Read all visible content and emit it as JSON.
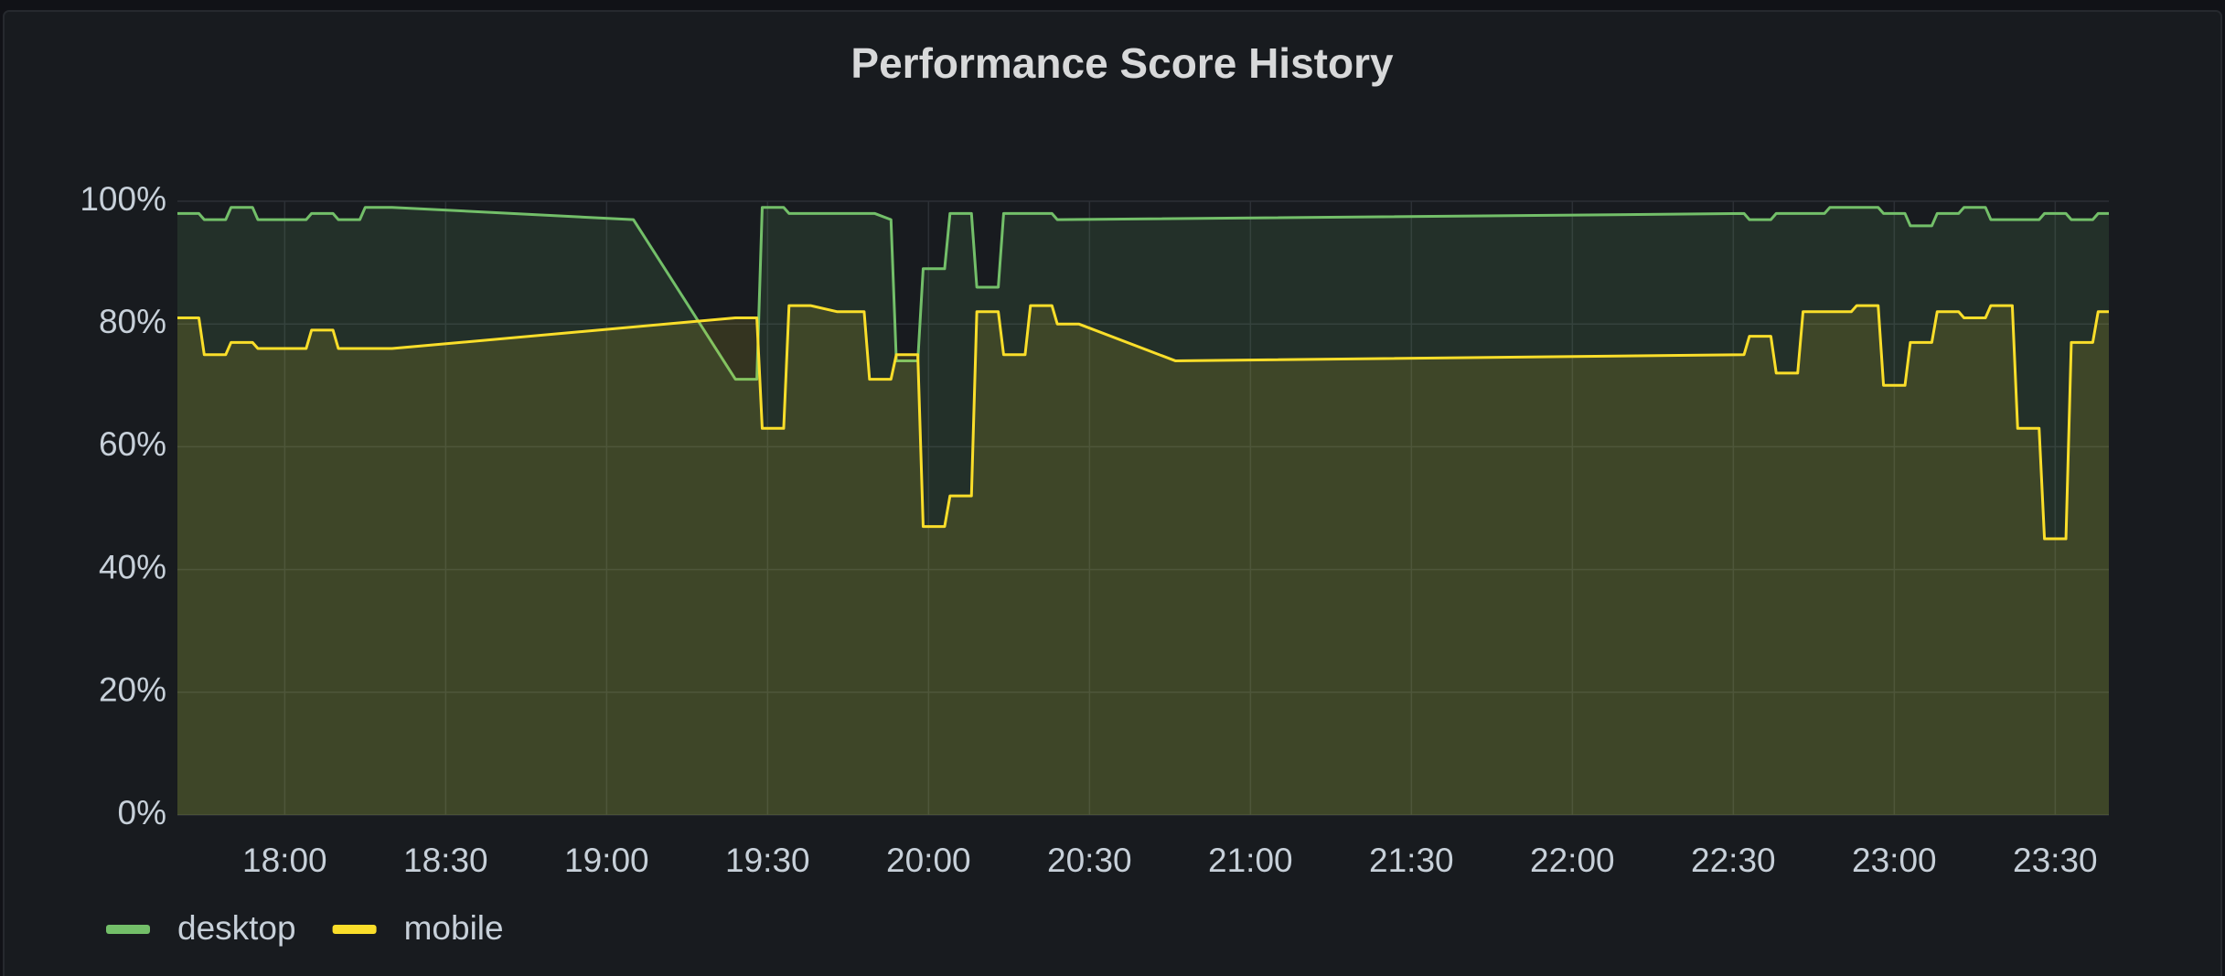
{
  "chart_data": {
    "type": "line",
    "title": "Performance Score History",
    "xlim": [
      "17:40",
      "23:40"
    ],
    "xticks": [
      "18:00",
      "18:30",
      "19:00",
      "19:30",
      "20:00",
      "20:30",
      "21:00",
      "21:30",
      "22:00",
      "22:30",
      "23:00",
      "23:30"
    ],
    "ylim": [
      0,
      100
    ],
    "yticks": [
      {
        "value": 0,
        "label": "0%"
      },
      {
        "value": 20,
        "label": "20%"
      },
      {
        "value": 40,
        "label": "40%"
      },
      {
        "value": 60,
        "label": "60%"
      },
      {
        "value": 80,
        "label": "80%"
      },
      {
        "value": 100,
        "label": "100%"
      }
    ],
    "grid": true,
    "legend": "bottom-left",
    "series": [
      {
        "name": "desktop",
        "color": "#73bf69",
        "x": [
          "17:40",
          "17:44",
          "17:45",
          "17:49",
          "17:50",
          "17:54",
          "17:55",
          "18:04",
          "18:05",
          "18:09",
          "18:10",
          "18:14",
          "18:15",
          "18:20",
          "19:05",
          "19:24",
          "19:28",
          "19:29",
          "19:33",
          "19:34",
          "19:50",
          "19:53",
          "19:54",
          "19:58",
          "19:59",
          "20:03",
          "20:04",
          "20:08",
          "20:09",
          "20:13",
          "20:14",
          "20:23",
          "20:24",
          "22:32",
          "22:33",
          "22:37",
          "22:38",
          "22:47",
          "22:48",
          "22:57",
          "22:58",
          "23:02",
          "23:03",
          "23:07",
          "23:08",
          "23:12",
          "23:13",
          "23:17",
          "23:18",
          "23:27",
          "23:28",
          "23:32",
          "23:33",
          "23:37",
          "23:38",
          "23:40"
        ],
        "values": [
          98,
          98,
          97,
          97,
          99,
          99,
          97,
          97,
          98,
          98,
          97,
          97,
          99,
          99,
          97,
          71,
          71,
          99,
          99,
          98,
          98,
          97,
          74,
          74,
          89,
          89,
          98,
          98,
          86,
          86,
          98,
          98,
          97,
          98,
          97,
          97,
          98,
          98,
          99,
          99,
          98,
          98,
          96,
          96,
          98,
          98,
          99,
          99,
          97,
          97,
          98,
          98,
          97,
          97,
          98,
          98
        ]
      },
      {
        "name": "mobile",
        "color": "#fade2a",
        "x": [
          "17:40",
          "17:44",
          "17:45",
          "17:49",
          "17:50",
          "17:54",
          "17:55",
          "18:04",
          "18:05",
          "18:09",
          "18:10",
          "18:20",
          "19:24",
          "19:28",
          "19:29",
          "19:33",
          "19:34",
          "19:38",
          "19:43",
          "19:48",
          "19:49",
          "19:53",
          "19:54",
          "19:58",
          "19:59",
          "20:03",
          "20:04",
          "20:08",
          "20:09",
          "20:13",
          "20:14",
          "20:18",
          "20:19",
          "20:23",
          "20:24",
          "20:28",
          "20:46",
          "22:32",
          "22:33",
          "22:37",
          "22:38",
          "22:42",
          "22:43",
          "22:52",
          "22:53",
          "22:57",
          "22:58",
          "23:02",
          "23:03",
          "23:07",
          "23:08",
          "23:12",
          "23:13",
          "23:17",
          "23:18",
          "23:22",
          "23:23",
          "23:27",
          "23:28",
          "23:32",
          "23:33",
          "23:37",
          "23:38",
          "23:40"
        ],
        "values": [
          81,
          81,
          75,
          75,
          77,
          77,
          76,
          76,
          79,
          79,
          76,
          76,
          81,
          81,
          63,
          63,
          83,
          83,
          82,
          82,
          71,
          71,
          75,
          75,
          47,
          47,
          52,
          52,
          82,
          82,
          75,
          75,
          83,
          83,
          80,
          80,
          74,
          75,
          78,
          78,
          72,
          72,
          82,
          82,
          83,
          83,
          70,
          70,
          77,
          77,
          82,
          82,
          81,
          81,
          83,
          83,
          63,
          63,
          45,
          45,
          77,
          77,
          82,
          82
        ]
      }
    ]
  }
}
